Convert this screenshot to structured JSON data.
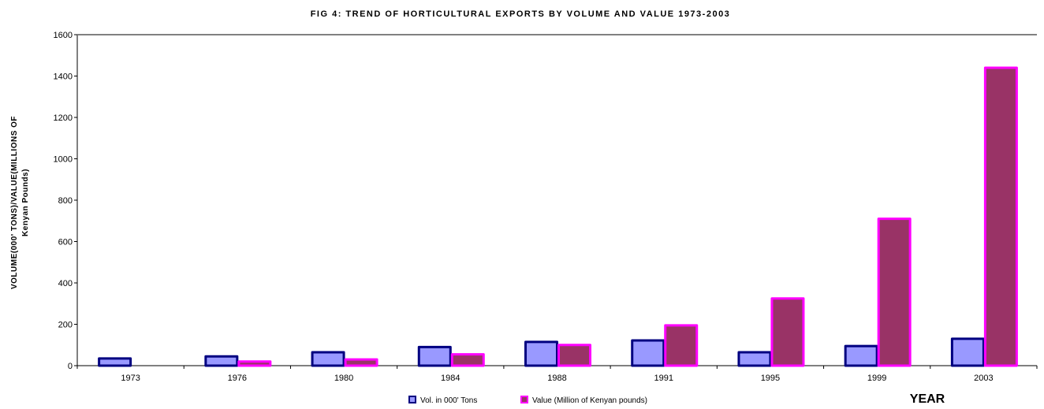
{
  "chart_data": {
    "type": "bar",
    "title": "FIG 4: TREND OF HORTICULTURAL EXPORTS BY VOLUME AND VALUE 1973-2003",
    "ylabel_line1": "VOLUME(000' TONS)/VALUE(MILLIONS OF",
    "ylabel_line2": "Kenyan Pounds)",
    "xlabel": "YEAR",
    "categories": [
      "1973",
      "1976",
      "1980",
      "1984",
      "1988",
      "1991",
      "1995",
      "1999",
      "2003"
    ],
    "ylim": [
      0,
      1600
    ],
    "yticks": [
      0,
      200,
      400,
      600,
      800,
      1000,
      1200,
      1400,
      1600
    ],
    "grid": false,
    "legend_position": "bottom",
    "series": [
      {
        "name": "Vol. in 000' Tons",
        "values": [
          35,
          45,
          65,
          90,
          115,
          122,
          65,
          95,
          130
        ],
        "fill": "#9999ff",
        "stroke": "#000080"
      },
      {
        "name": "Value (Million of Kenyan pounds)",
        "values": [
          0,
          20,
          30,
          55,
          100,
          195,
          325,
          710,
          1440
        ],
        "fill": "#993366",
        "stroke": "#ff00ff"
      }
    ]
  }
}
